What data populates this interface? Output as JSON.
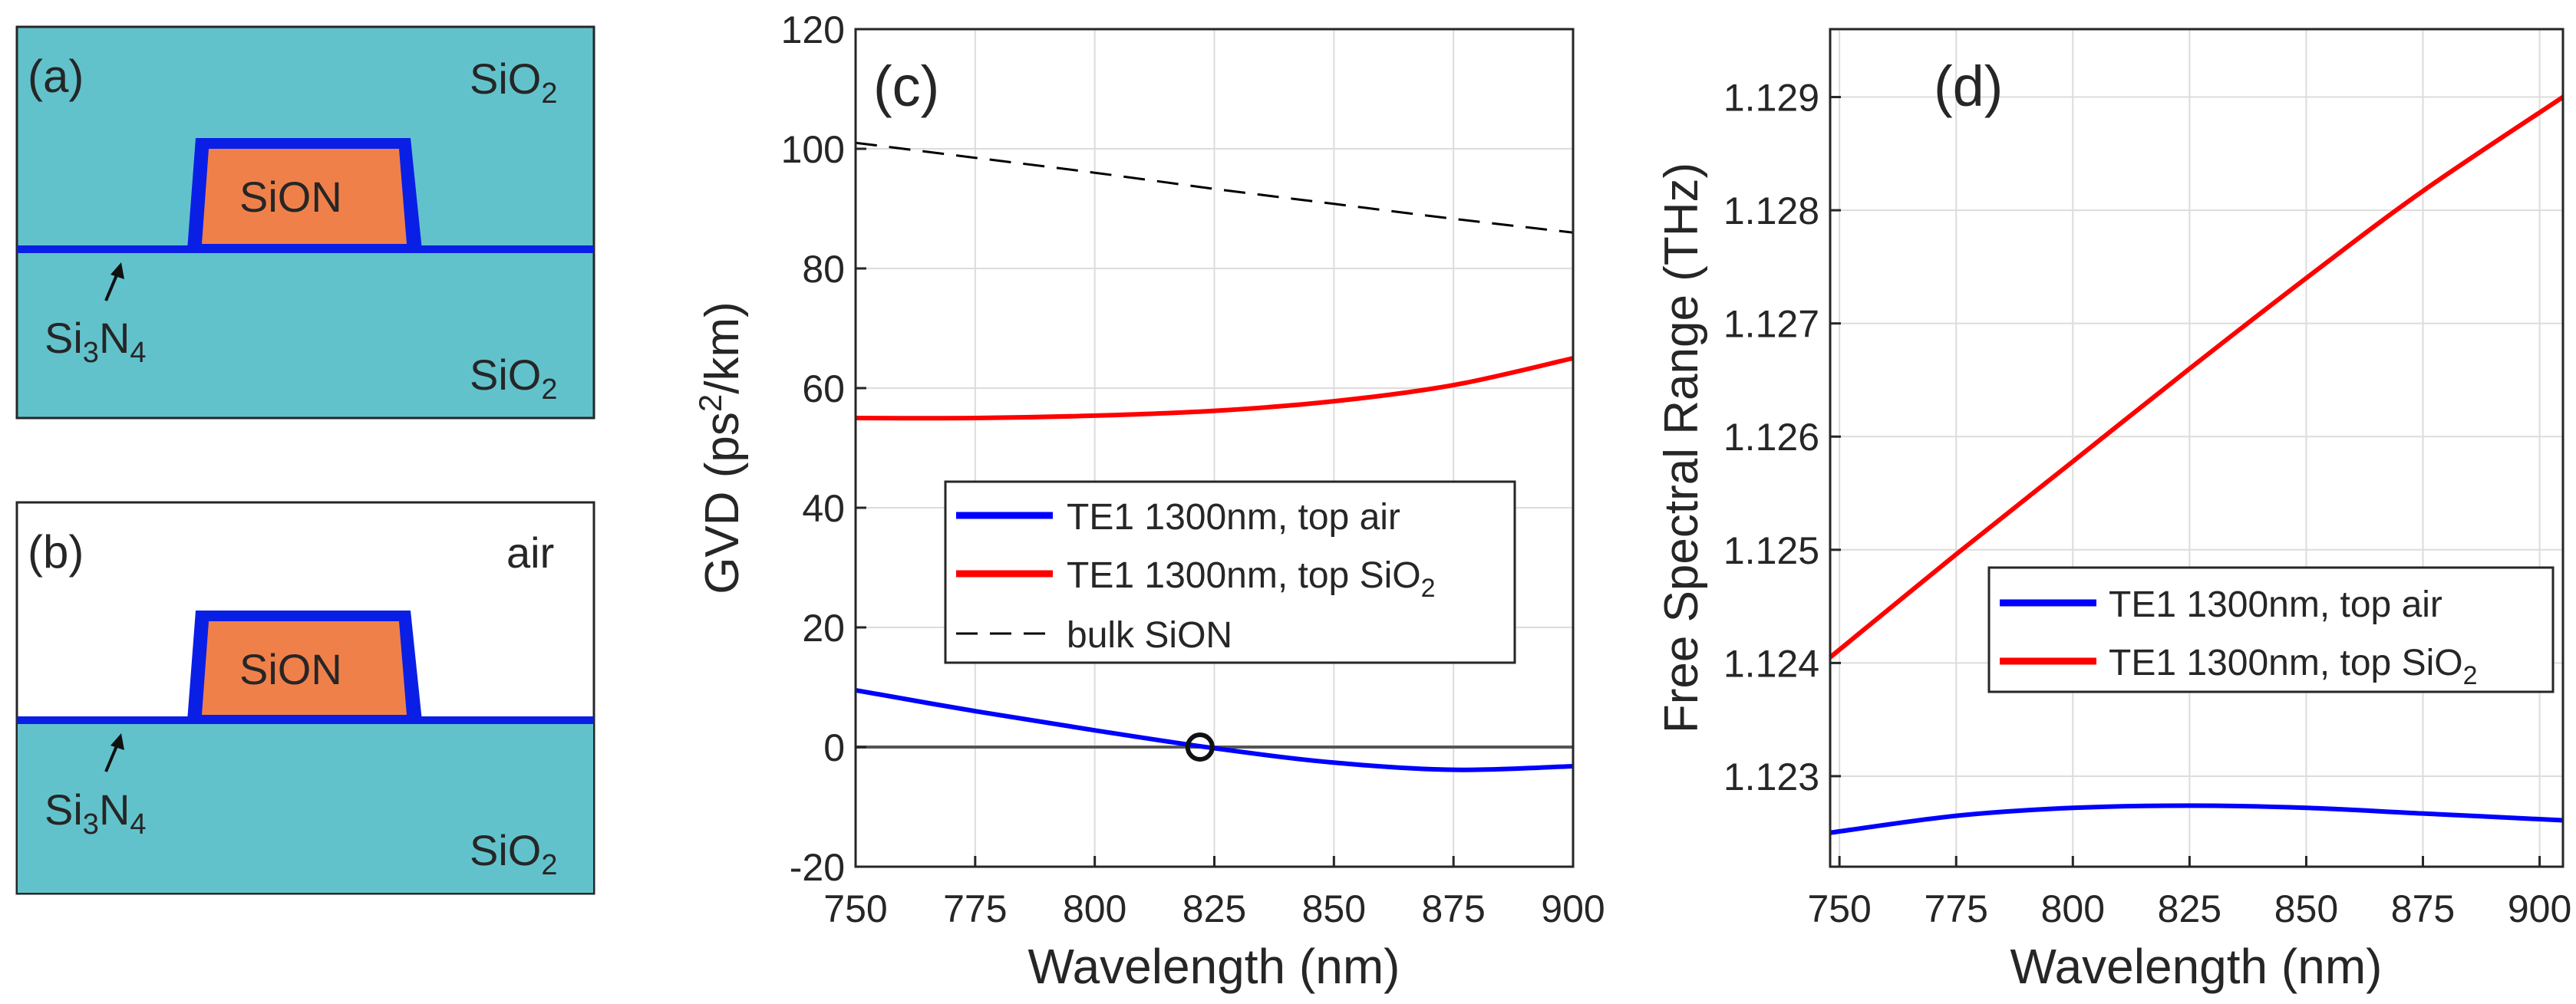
{
  "panels": {
    "a": {
      "label": "(a)",
      "top_cladding": "SiO",
      "top_cladding_sub": "2",
      "core": "SiON",
      "layer": "Si",
      "layer_sub1": "3",
      "layer_mid": "N",
      "layer_sub2": "4",
      "bottom_cladding": "SiO",
      "bottom_cladding_sub": "2"
    },
    "b": {
      "label": "(b)",
      "top_cladding": "air",
      "core": "SiON",
      "layer": "Si",
      "layer_sub1": "3",
      "layer_mid": "N",
      "layer_sub2": "4",
      "bottom_cladding": "SiO",
      "bottom_cladding_sub": "2"
    }
  },
  "colors": {
    "oxide": "#62c2cc",
    "core": "#f0804a",
    "nitride": "#0a1fe6",
    "red_series": "#ff0000",
    "blue_series": "#0000ff",
    "bulk": "#000000"
  },
  "chart_data": [
    {
      "type": "line",
      "panel_label": "(c)",
      "title": "",
      "xlabel": "Wavelength (nm)",
      "ylabel": "GVD (ps",
      "ylabel_sup": "2",
      "ylabel_tail": "/km)",
      "xlim": [
        750,
        900
      ],
      "ylim": [
        -20,
        120
      ],
      "xticks": [
        750,
        775,
        800,
        825,
        850,
        875,
        900
      ],
      "yticks": [
        -20,
        0,
        20,
        40,
        60,
        80,
        100,
        120
      ],
      "grid": true,
      "legend_position": "middle",
      "zero_marker": {
        "x": 822,
        "y": 0
      },
      "series": [
        {
          "name": "TE1 1300nm, top air",
          "name_sub": "",
          "color": "#0000ff",
          "style": "solid",
          "x": [
            750,
            775,
            800,
            825,
            850,
            875,
            900
          ],
          "y": [
            9.5,
            6,
            2.8,
            -0.2,
            -2.6,
            -3.8,
            -3.2
          ]
        },
        {
          "name": "TE1 1300nm, top SiO",
          "name_sub": "2",
          "color": "#ff0000",
          "style": "solid",
          "x": [
            750,
            775,
            800,
            825,
            850,
            875,
            900
          ],
          "y": [
            55,
            55,
            55.4,
            56.2,
            57.8,
            60.5,
            65
          ]
        },
        {
          "name": "bulk SiON",
          "name_sub": "",
          "color": "#000000",
          "style": "dashed",
          "x": [
            750,
            775,
            800,
            825,
            850,
            875,
            900
          ],
          "y": [
            101,
            98.5,
            96,
            93.3,
            90.8,
            88.3,
            86
          ]
        }
      ]
    },
    {
      "type": "line",
      "panel_label": "(d)",
      "title": "",
      "xlabel": "Wavelength (nm)",
      "ylabel": "Free Spectral Range (THz)",
      "xlim": [
        748,
        905
      ],
      "ylim": [
        1.1222,
        1.1296
      ],
      "xticks": [
        750,
        775,
        800,
        825,
        850,
        875,
        900
      ],
      "yticks": [
        1.123,
        1.124,
        1.125,
        1.126,
        1.127,
        1.128,
        1.129
      ],
      "grid": true,
      "legend_position": "lower-right",
      "series": [
        {
          "name": "TE1 1300nm, top air",
          "name_sub": "",
          "color": "#0000ff",
          "style": "solid",
          "x": [
            748,
            775,
            800,
            825,
            850,
            875,
            905
          ],
          "y": [
            1.1225,
            1.12265,
            1.12272,
            1.12274,
            1.12272,
            1.12267,
            1.12261
          ]
        },
        {
          "name": "TE1 1300nm, top SiO",
          "name_sub": "2",
          "color": "#ff0000",
          "style": "solid",
          "x": [
            748,
            775,
            800,
            825,
            850,
            875,
            905
          ],
          "y": [
            1.12405,
            1.12496,
            1.12578,
            1.1266,
            1.1274,
            1.12817,
            1.129
          ]
        }
      ]
    }
  ]
}
